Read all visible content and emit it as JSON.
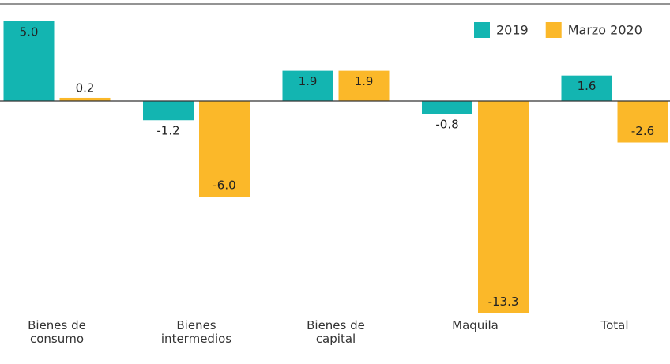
{
  "chart_data": {
    "type": "bar",
    "categories": [
      "Bienes de consumo",
      "Bienes intermedios",
      "Bienes de capital",
      "Maquila",
      "Total"
    ],
    "series": [
      {
        "name": "2019",
        "color": "#13b5b1",
        "values": [
          5.0,
          -1.2,
          1.9,
          -0.8,
          1.6
        ],
        "value_labels": [
          "5.0",
          "-1.2",
          "1.9",
          "-0.8",
          "1.6"
        ]
      },
      {
        "name": "Marzo 2020",
        "color": "#fbb829",
        "values": [
          0.2,
          -6.0,
          1.9,
          -13.3,
          -2.6
        ],
        "value_labels": [
          "0.2",
          "-6.0",
          "1.9",
          "-13.3",
          "-2.6"
        ]
      }
    ],
    "legend": "top-right"
  }
}
